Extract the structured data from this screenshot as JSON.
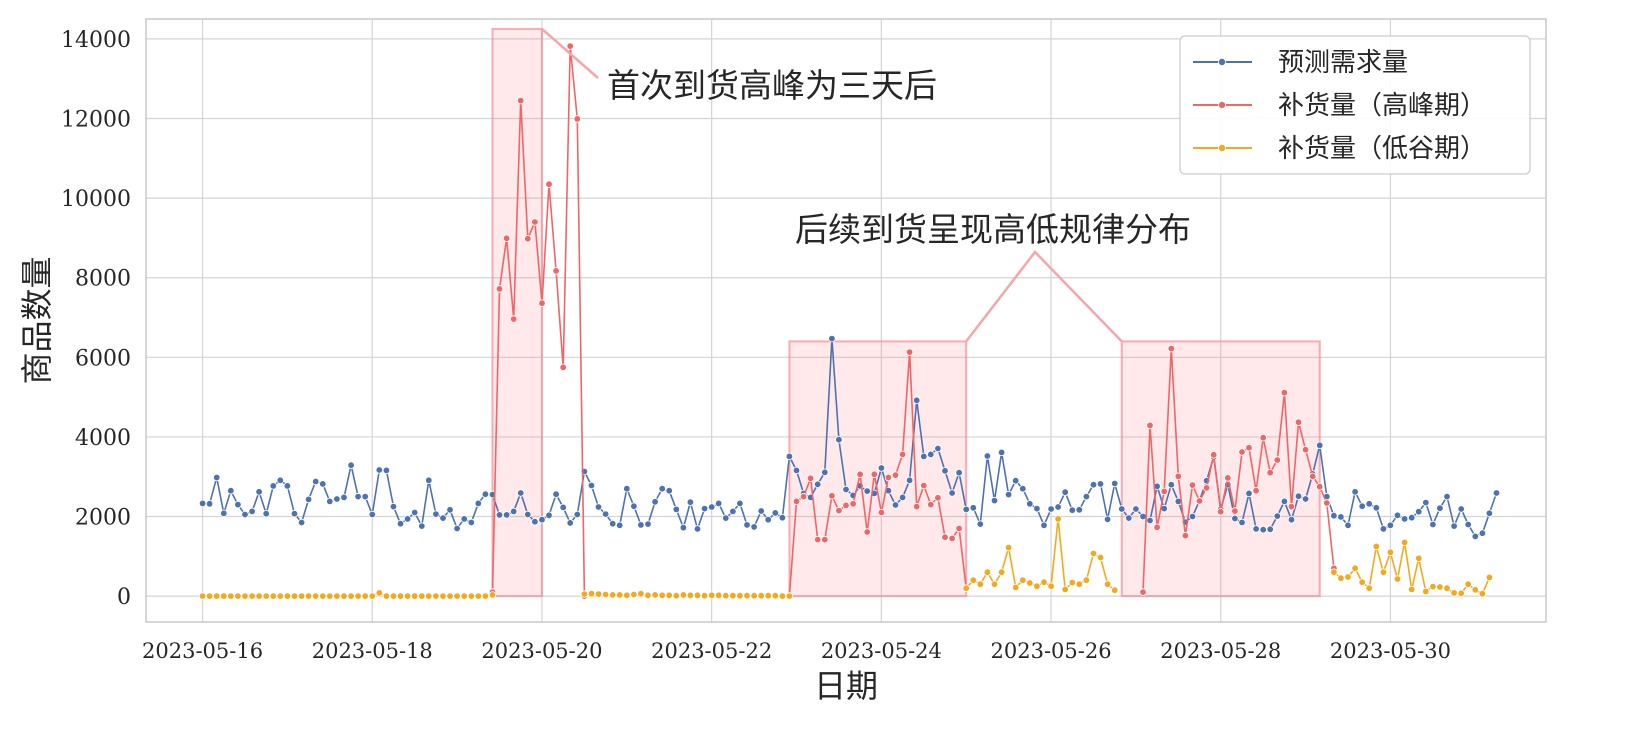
{
  "chart_data": {
    "type": "line",
    "title": "",
    "xlabel": "日期",
    "ylabel": "商品数量",
    "x_range": [
      "2023-05-15T08:00",
      "2023-05-31T20:00"
    ],
    "ylim": [
      -650,
      14500
    ],
    "grid": true,
    "legend_position": "top-right",
    "x_ticks": [
      "2023-05-16",
      "2023-05-18",
      "2023-05-20",
      "2023-05-22",
      "2023-05-24",
      "2023-05-26",
      "2023-05-28",
      "2023-05-30"
    ],
    "y_ticks": [
      0,
      2000,
      4000,
      6000,
      8000,
      10000,
      12000,
      14000
    ],
    "x_start": "2023-05-16T00:00",
    "x_step_hours": 2,
    "series": [
      {
        "name": "预测需求量",
        "color": "#4c72b0",
        "values": [
          2330,
          2320,
          2980,
          2080,
          2650,
          2300,
          2050,
          2130,
          2620,
          2070,
          2770,
          2910,
          2770,
          2070,
          1850,
          2430,
          2880,
          2820,
          2380,
          2440,
          2480,
          3290,
          2500,
          2500,
          2050,
          3170,
          3160,
          2250,
          1820,
          1940,
          2100,
          1760,
          2910,
          2060,
          1960,
          2170,
          1700,
          1940,
          1850,
          2330,
          2560,
          2550,
          2040,
          2040,
          2130,
          2590,
          2050,
          1870,
          1920,
          2030,
          2560,
          2230,
          1840,
          2050,
          3130,
          2780,
          2240,
          2060,
          1820,
          1780,
          2700,
          2260,
          1790,
          1810,
          2370,
          2700,
          2650,
          2180,
          1720,
          2360,
          1690,
          2200,
          2240,
          2330,
          1960,
          2130,
          2330,
          1790,
          1740,
          2140,
          1920,
          2090,
          1970,
          3510,
          3160,
          2580,
          2480,
          2810,
          3110,
          6470,
          3930,
          2680,
          2530,
          2770,
          2640,
          2580,
          3220,
          2650,
          2290,
          2480,
          2910,
          4920,
          3510,
          3560,
          3710,
          3150,
          2590,
          3100,
          2180,
          2220,
          1810,
          3520,
          2400,
          3610,
          2550,
          2900,
          2700,
          2320,
          2200,
          1780,
          2190,
          2240,
          2610,
          2160,
          2170,
          2500,
          2800,
          2820,
          1930,
          2830,
          2190,
          1960,
          2190,
          2000,
          1900,
          2760,
          2200,
          2800,
          2380,
          1860,
          2000,
          2400,
          2900,
          3500,
          2180,
          2800,
          1950,
          1850,
          2580,
          1690,
          1670,
          1680,
          2010,
          2380,
          1920,
          2510,
          2440,
          3070,
          3790,
          2500,
          2020,
          1990,
          1780,
          2620,
          2260,
          2320,
          2220,
          1690,
          1780,
          2030,
          1940,
          1970,
          2120,
          2350,
          1800,
          2210,
          2500,
          1760,
          2190,
          1800,
          1500,
          1580,
          2080,
          2590
        ]
      },
      {
        "name": "补货量（高峰期）",
        "color": "#ee6666",
        "segments": [
          {
            "start_index": 41,
            "values": [
              100,
              7720,
              8990,
              6960,
              12450,
              8980,
              9400,
              7360,
              10350,
              8170,
              5750,
              13820,
              11990,
              0
            ]
          },
          {
            "start_index": 83,
            "values": [
              0,
              2380,
              2500,
              2960,
              1420,
              1420,
              2520,
              2150,
              2280,
              2320,
              3060,
              1610,
              3060,
              2100,
              2980,
              3040,
              3560,
              6130,
              2250,
              2780,
              2300,
              2470,
              1480,
              1450,
              1700,
              200
            ]
          },
          {
            "start_index": 133,
            "values": [
              100,
              4290,
              1730,
              2630,
              6220,
              3010,
              1520,
              2790,
              2390,
              2720,
              3550,
              2120,
              2970,
              2140,
              3620,
              3730,
              2650,
              3980,
              3100,
              3420,
              5110,
              2250,
              4370,
              3680,
              3010,
              2750,
              2340,
              700
            ]
          }
        ]
      },
      {
        "name": "补货量（低谷期）",
        "color": "#f2a91f",
        "segments": [
          {
            "start_index": 0,
            "values": [
              0,
              0,
              0,
              0,
              0,
              0,
              0,
              0,
              0,
              0,
              0,
              0,
              0,
              0,
              0,
              0,
              0,
              0,
              0,
              0,
              0,
              0,
              0,
              0,
              0,
              80,
              0,
              0,
              0,
              0,
              0,
              0,
              0,
              0,
              0,
              0,
              0,
              0,
              0,
              0,
              0,
              30
            ]
          },
          {
            "start_index": 54,
            "values": [
              50,
              60,
              50,
              40,
              30,
              30,
              20,
              40,
              60,
              20,
              30,
              20,
              20,
              10,
              30,
              20,
              20,
              10,
              20,
              20,
              10,
              10,
              10,
              10,
              10,
              10,
              10,
              10,
              0,
              0
            ]
          },
          {
            "start_index": 108,
            "values": [
              200,
              400,
              300,
              600,
              300,
              600,
              1220,
              220,
              400,
              330,
              250,
              350,
              250,
              1940,
              170,
              340,
              300,
              400,
              1070,
              970,
              300,
              150
            ]
          },
          {
            "start_index": 160,
            "values": [
              600,
              450,
              480,
              700,
              350,
              200,
              1250,
              600,
              1100,
              430,
              1350,
              170,
              950,
              120,
              240,
              230,
              200,
              80,
              70,
              300,
              160,
              60,
              470
            ]
          }
        ]
      }
    ],
    "highlight_ranges": [
      {
        "from": "2023-05-19T10:00",
        "to": "2023-05-20T00:00",
        "y_top": 14250
      },
      {
        "from": "2023-05-22T22:00",
        "to": "2023-05-25T00:00",
        "y_top": 6400
      },
      {
        "from": "2023-05-26T20:00",
        "to": "2023-05-29T04:00",
        "y_top": 6400
      }
    ],
    "annotations": [
      {
        "text": "首次到货高峰为三天后"
      },
      {
        "text": "后续到货呈现高低规律分布"
      }
    ]
  }
}
